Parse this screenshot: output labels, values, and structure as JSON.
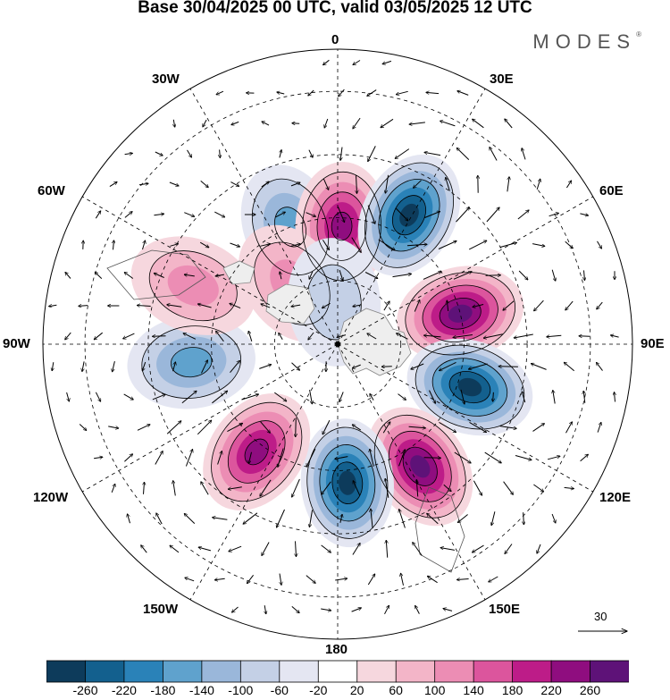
{
  "title": "Base 30/04/2025 00 UTC, valid 03/05/2025 12 UTC",
  "logo": "MODES",
  "logo_mark": "®",
  "longitude_labels": {
    "lon_0": "0",
    "lon_30E": "30E",
    "lon_60E": "60E",
    "lon_90E": "90E",
    "lon_120E": "120E",
    "lon_150E": "150E",
    "lon_180": "180",
    "lon_150W": "150W",
    "lon_120W": "120W",
    "lon_90W": "90W",
    "lon_60W": "60W",
    "lon_30W": "30W"
  },
  "vector_scale": {
    "label": "30"
  },
  "colorbar": {
    "colors": [
      "#0d3b5b",
      "#13608e",
      "#2a82b8",
      "#5fa2cd",
      "#9ab7da",
      "#c4d0e6",
      "#e4e6f2",
      "#ffffff",
      "#f6d7de",
      "#f3b5c8",
      "#ec8db4",
      "#dc559d",
      "#bd1c88",
      "#8f0d7f",
      "#5e1278"
    ],
    "tick_labels": [
      "-260",
      "-220",
      "-180",
      "-140",
      "-100",
      "-60",
      "-20",
      "20",
      "60",
      "100",
      "140",
      "180",
      "220",
      "260"
    ]
  },
  "anomaly_centers": [
    {
      "lon": -22,
      "lat": 60,
      "value": -120
    },
    {
      "lon": 2,
      "lat": 62,
      "value": 200
    },
    {
      "lon": 29,
      "lat": 55,
      "value": -250
    },
    {
      "lon": 76,
      "lat": 60,
      "value": 230
    },
    {
      "lon": 108,
      "lat": 57,
      "value": -250
    },
    {
      "lon": 146,
      "lat": 55,
      "value": 250
    },
    {
      "lon": 176,
      "lat": 57,
      "value": -230
    },
    {
      "lon": -143,
      "lat": 58,
      "value": 200
    },
    {
      "lon": -97,
      "lat": 55,
      "value": -120
    },
    {
      "lon": -68,
      "lat": 53,
      "value": 80
    },
    {
      "lon": -37,
      "lat": 72,
      "value": 70
    },
    {
      "lon": -5,
      "lat": 80,
      "value": -60
    }
  ]
}
